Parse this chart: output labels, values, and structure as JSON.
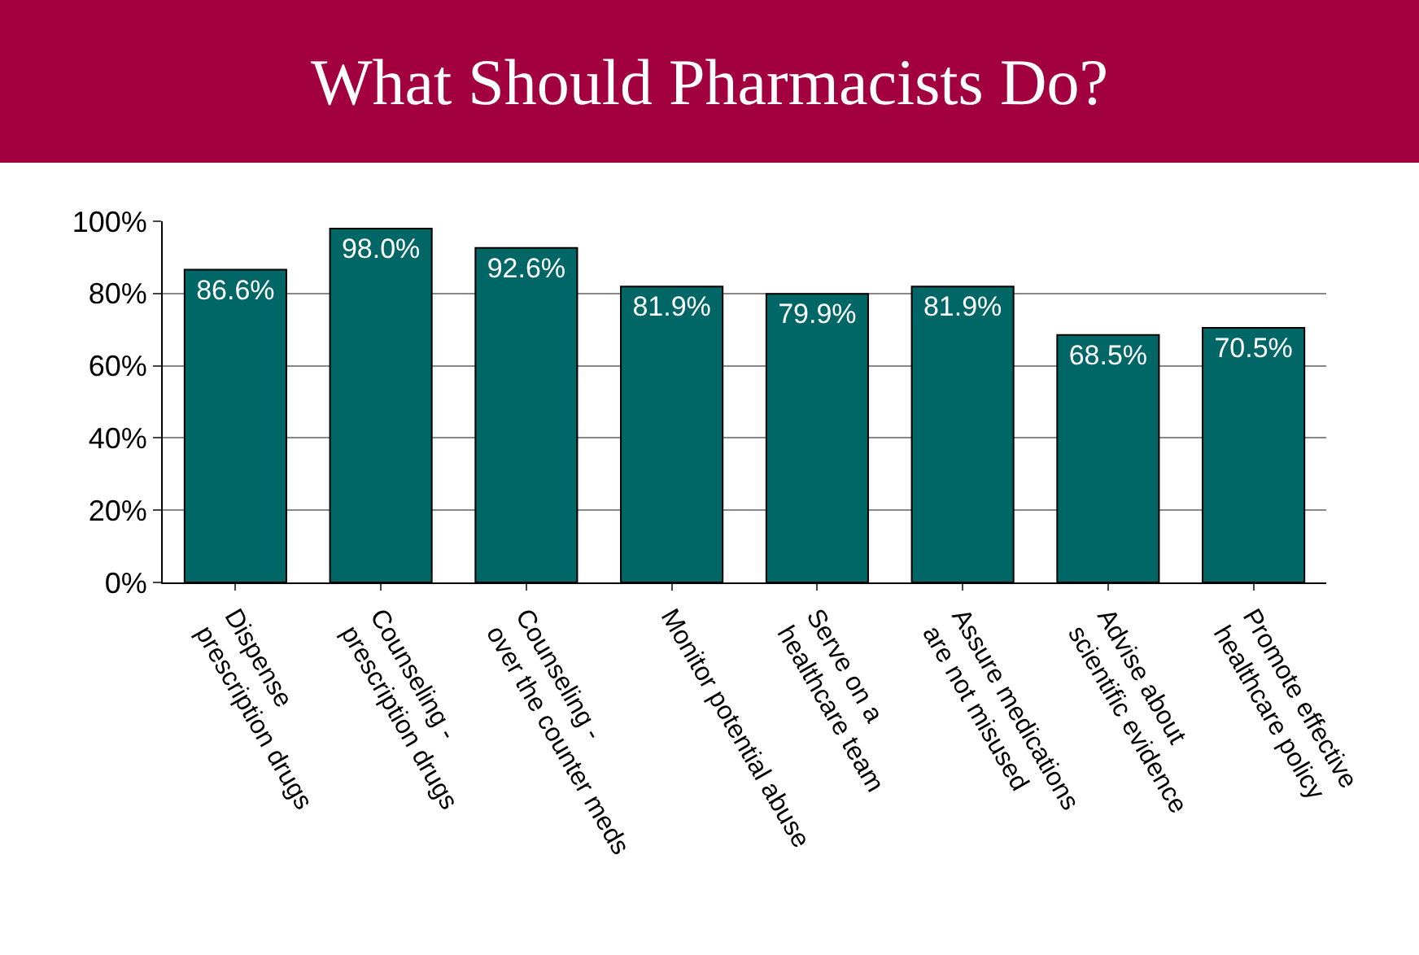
{
  "chart_data": {
    "type": "bar",
    "title": "What Should Pharmacists Do?",
    "categories": [
      "Dispense\nprescription drugs",
      "Counseling -\nprescription drugs",
      "Counseling -\nover the counter meds",
      "Monitor potential abuse",
      "Serve on a\nhealthcare team",
      "Assure medications\nare not misused",
      "Advise about\nscientific evidence",
      "Promote effective\nhealthcare policy"
    ],
    "values": [
      86.6,
      98.0,
      92.6,
      81.9,
      79.9,
      81.9,
      68.5,
      70.5
    ],
    "value_labels": [
      "86.6%",
      "98.0%",
      "92.6%",
      "81.9%",
      "79.9%",
      "81.9%",
      "68.5%",
      "70.5%"
    ],
    "color": "#006666",
    "ylim": [
      0,
      100
    ],
    "yticks": [
      {
        "value": 0,
        "label": "0%"
      },
      {
        "value": 20,
        "label": "20%"
      },
      {
        "value": 40,
        "label": "40%"
      },
      {
        "value": 60,
        "label": "60%"
      },
      {
        "value": 80,
        "label": "80%"
      },
      {
        "value": 100,
        "label": "100%"
      }
    ],
    "grid": "y",
    "legend": false
  }
}
